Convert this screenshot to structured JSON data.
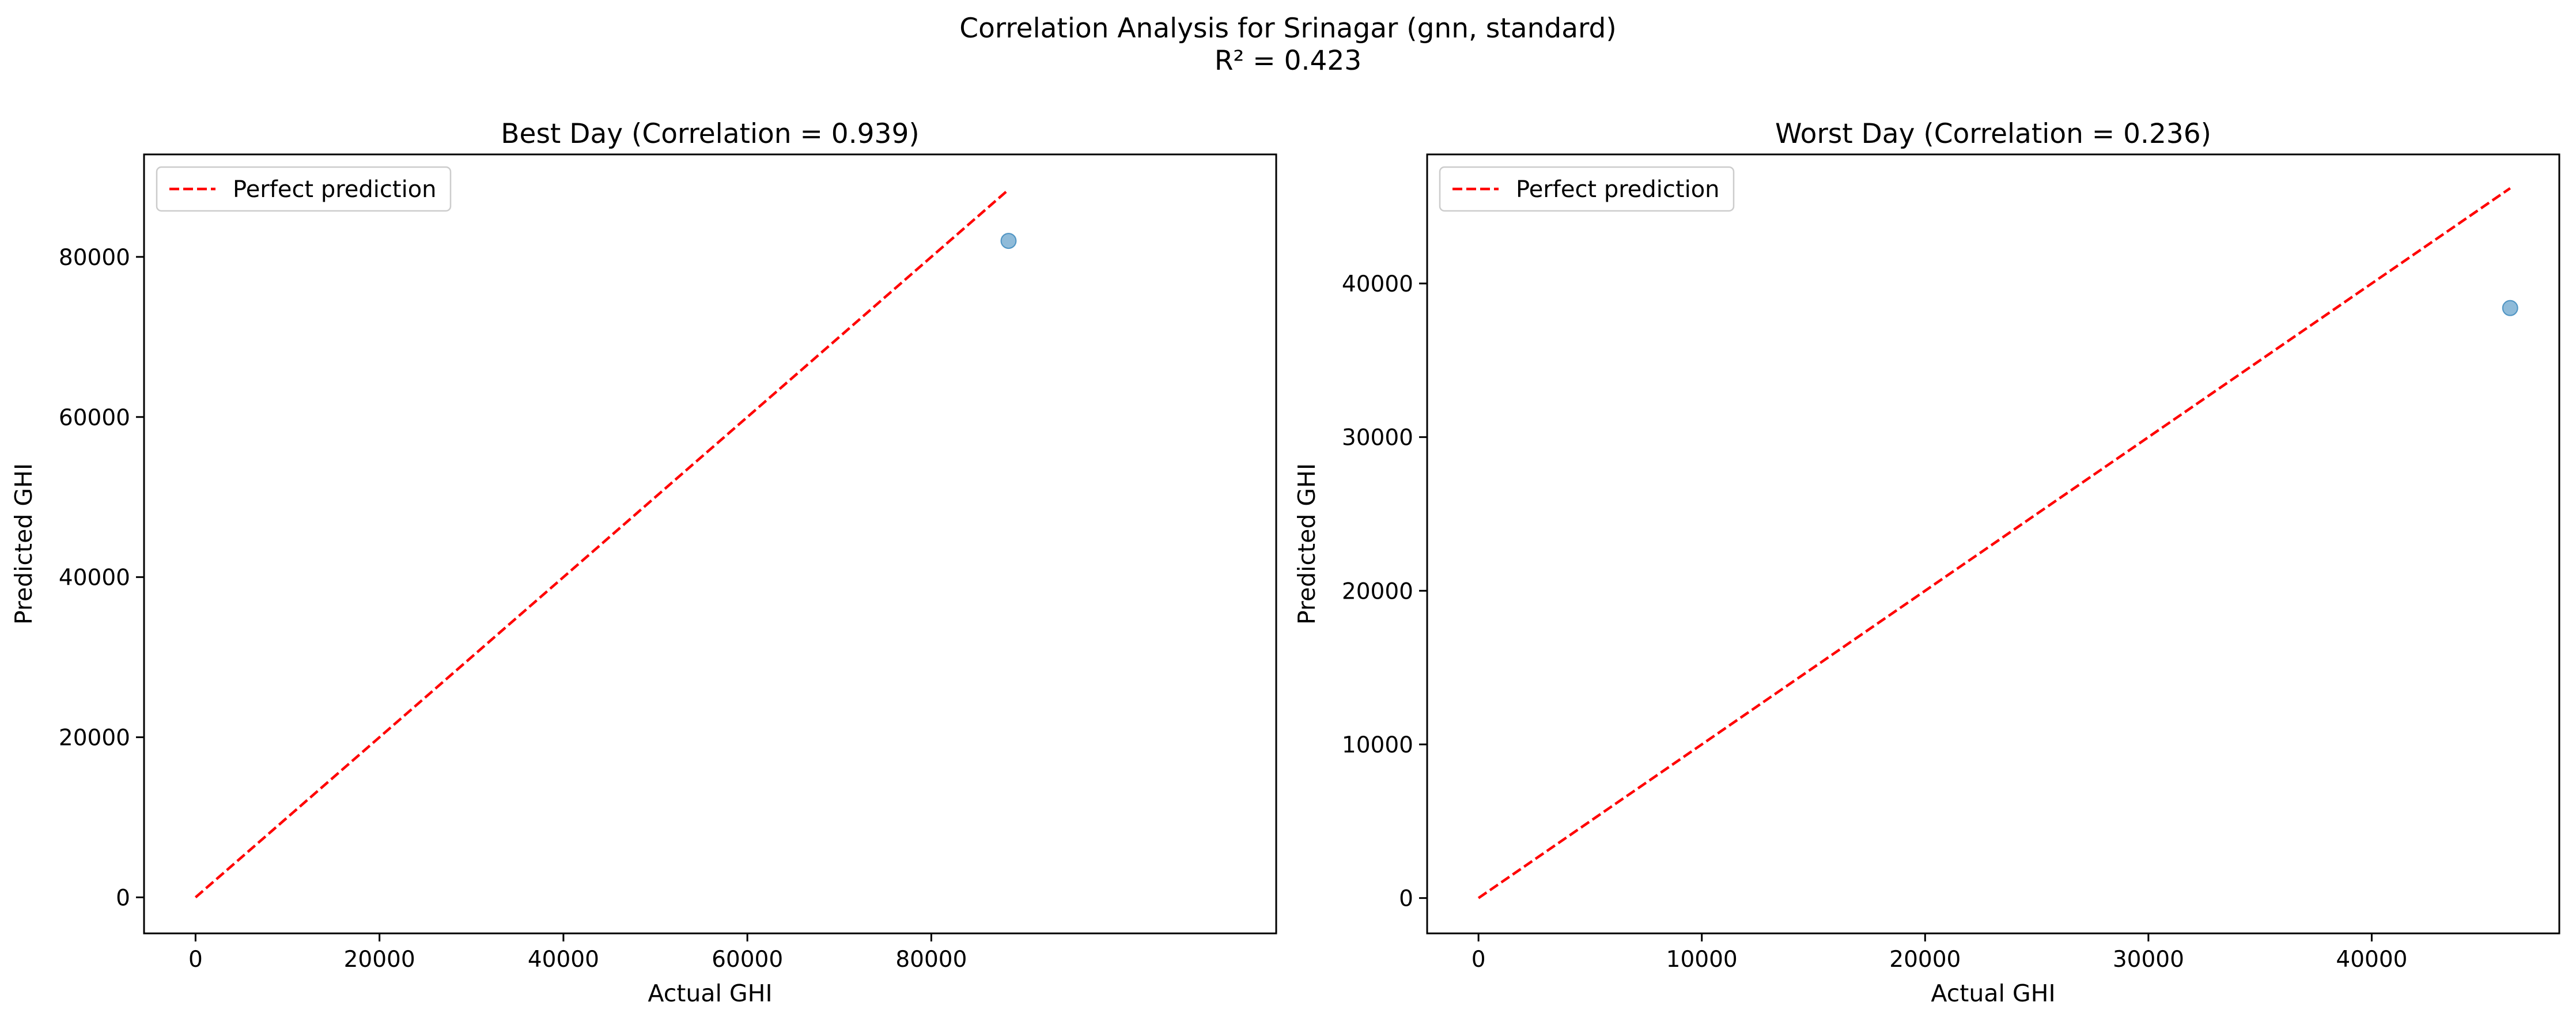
{
  "figure": {
    "title_line1": "Correlation Analysis for Srinagar (gnn, standard)",
    "title_line2": "R² = 0.423"
  },
  "colors": {
    "perfect_line": "#ff0000",
    "points": "#1f77b4",
    "axes": "#000000"
  },
  "chart_data": [
    {
      "type": "scatter",
      "title": "Best Day (Correlation = 0.939)",
      "xlabel": "Actual GHI",
      "ylabel": "Predicted GHI",
      "xlim": [
        -5600,
        117500
      ],
      "ylim": [
        -4500,
        92800
      ],
      "xticks": [
        0,
        20000,
        40000,
        60000,
        80000
      ],
      "xtick_labels": [
        "0",
        "20000",
        "40000",
        "60000",
        "80000"
      ],
      "yticks": [
        0,
        20000,
        40000,
        60000,
        80000
      ],
      "ytick_labels": [
        "0",
        "20000",
        "40000",
        "60000",
        "80000"
      ],
      "grid": false,
      "legend": {
        "position": "top-left",
        "entries": [
          "Perfect prediction"
        ]
      },
      "series": [
        {
          "name": "Perfect prediction",
          "type": "line",
          "style": "dashed",
          "x": [
            0,
            88400
          ],
          "y": [
            0,
            88400
          ]
        },
        {
          "type": "scatter",
          "x": [
            88400
          ],
          "y": [
            82000
          ]
        }
      ]
    },
    {
      "type": "scatter",
      "title": "Worst Day (Correlation = 0.236)",
      "xlabel": "Actual GHI",
      "ylabel": "Predicted GHI",
      "xlim": [
        -2300,
        48400
      ],
      "ylim": [
        -2300,
        48400
      ],
      "xticks": [
        0,
        10000,
        20000,
        30000,
        40000
      ],
      "xtick_labels": [
        "0",
        "10000",
        "20000",
        "30000",
        "40000"
      ],
      "yticks": [
        0,
        10000,
        20000,
        30000,
        40000
      ],
      "ytick_labels": [
        "0",
        "10000",
        "20000",
        "30000",
        "40000"
      ],
      "grid": false,
      "legend": {
        "position": "top-left",
        "entries": [
          "Perfect prediction"
        ]
      },
      "series": [
        {
          "name": "Perfect prediction",
          "type": "line",
          "style": "dashed",
          "x": [
            0,
            46200
          ],
          "y": [
            0,
            46200
          ]
        },
        {
          "type": "scatter",
          "x": [
            46200
          ],
          "y": [
            38400
          ]
        }
      ]
    }
  ]
}
